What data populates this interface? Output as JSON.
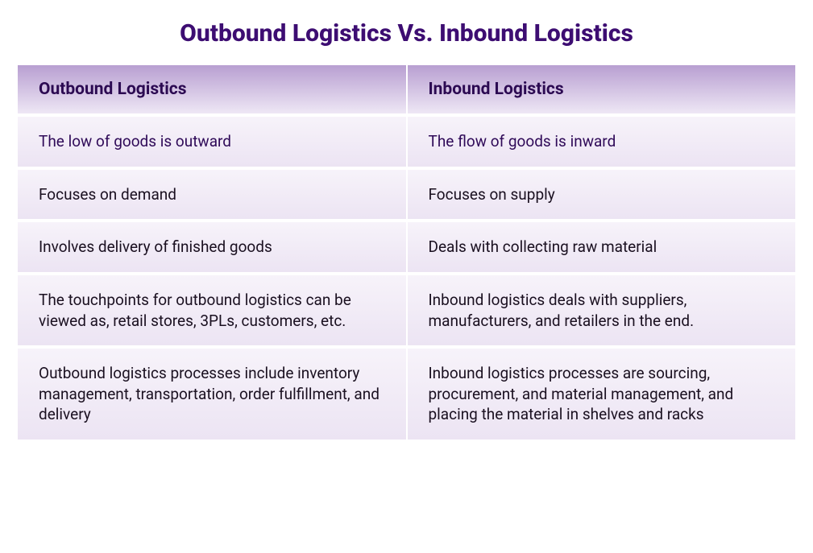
{
  "title": {
    "text": "Outbound Logistics Vs. Inbound Logistics",
    "fontsize": 30,
    "color": "#3d0d72"
  },
  "colors": {
    "header_gradient_top": "#b89fd1",
    "header_gradient_bottom": "#eee7f5",
    "header_text": "#2c0a52",
    "row_gradient_top": "#f7f3fa",
    "row_gradient_bottom": "#ece4f3",
    "body_text_dark": "#1a1020",
    "body_text_purple": "#2f0a58",
    "divider": "#ffffff",
    "page_bg": "#ffffff"
  },
  "typography": {
    "header_fontsize": 21,
    "body_fontsize": 19
  },
  "table": {
    "type": "table",
    "columns": [
      "Outbound Logistics",
      "Inbound Logistics"
    ],
    "rows": [
      {
        "outbound": "The low of goods is outward",
        "inbound": "The flow of goods is inward",
        "text_color": "#2f0a58"
      },
      {
        "outbound": "Focuses on demand",
        "inbound": "Focuses on supply",
        "text_color": "#1a1020"
      },
      {
        "outbound": "Involves delivery of finished goods",
        "inbound": "Deals with collecting raw material",
        "text_color": "#1a1020"
      },
      {
        "outbound": "The touchpoints for outbound logistics can be viewed as, retail stores, 3PLs, customers, etc.",
        "inbound": "Inbound logistics deals with suppliers, manufacturers, and retailers in the end.",
        "text_color": "#1a1020"
      },
      {
        "outbound": "Outbound logistics processes include inventory management, transportation, order fulfillment, and delivery",
        "inbound": "Inbound logistics processes are sourcing, procurement, and material management, and placing the material in shelves and racks",
        "text_color": "#1a1020"
      }
    ]
  }
}
